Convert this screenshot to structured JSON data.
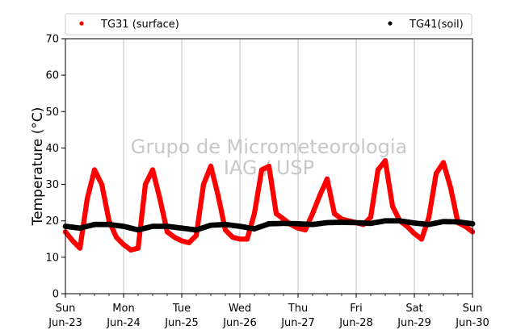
{
  "chart_data": {
    "type": "scatter",
    "title": "",
    "xlabel": "",
    "ylabel": "Temperature (°C)",
    "ylim": [
      0,
      70
    ],
    "yticks": [
      0,
      10,
      20,
      30,
      40,
      50,
      60,
      70
    ],
    "xlim": [
      "2024-06-23 00:00",
      "2024-06-30 00:00"
    ],
    "xtick_labels": [
      [
        "Sun",
        "Jun-23"
      ],
      [
        "Mon",
        "Jun-24"
      ],
      [
        "Tue",
        "Jun-25"
      ],
      [
        "Wed",
        "Jun-26"
      ],
      [
        "Thu",
        "Jun-27"
      ],
      [
        "Fri",
        "Jun-28"
      ],
      [
        "Sat",
        "Jun-29"
      ],
      [
        "Sun",
        "Jun-30"
      ]
    ],
    "grid": "vertical-at-day-ticks",
    "legend_placement": "top, above plot",
    "watermark": [
      "Grupo de Micrometeorologia",
      "IAG / USP"
    ],
    "series": [
      {
        "name": "TG31 (surface)",
        "color": "#ff0000",
        "x": [
          "2024-06-23 00:00",
          "2024-06-23 03:00",
          "2024-06-23 06:00",
          "2024-06-23 09:00",
          "2024-06-23 12:00",
          "2024-06-23 15:00",
          "2024-06-23 18:00",
          "2024-06-23 21:00",
          "2024-06-24 00:00",
          "2024-06-24 03:00",
          "2024-06-24 06:00",
          "2024-06-24 09:00",
          "2024-06-24 12:00",
          "2024-06-24 15:00",
          "2024-06-24 18:00",
          "2024-06-24 21:00",
          "2024-06-25 00:00",
          "2024-06-25 03:00",
          "2024-06-25 06:00",
          "2024-06-25 09:00",
          "2024-06-25 12:00",
          "2024-06-25 15:00",
          "2024-06-25 18:00",
          "2024-06-25 21:00",
          "2024-06-26 00:00",
          "2024-06-26 03:00",
          "2024-06-26 06:00",
          "2024-06-26 09:00",
          "2024-06-26 12:00",
          "2024-06-26 15:00",
          "2024-06-26 18:00",
          "2024-06-26 21:00",
          "2024-06-27 00:00",
          "2024-06-27 03:00",
          "2024-06-27 06:00",
          "2024-06-27 09:00",
          "2024-06-27 12:00",
          "2024-06-27 15:00",
          "2024-06-27 18:00",
          "2024-06-27 21:00",
          "2024-06-28 00:00",
          "2024-06-28 03:00",
          "2024-06-28 06:00",
          "2024-06-28 09:00",
          "2024-06-28 12:00",
          "2024-06-28 15:00",
          "2024-06-28 18:00",
          "2024-06-28 21:00",
          "2024-06-29 00:00",
          "2024-06-29 03:00",
          "2024-06-29 06:00",
          "2024-06-29 09:00",
          "2024-06-29 12:00",
          "2024-06-29 15:00",
          "2024-06-29 18:00",
          "2024-06-29 21:00",
          "2024-06-30 00:00"
        ],
        "y": [
          17.0,
          14.5,
          12.5,
          26.0,
          34.0,
          30.0,
          20.0,
          15.5,
          13.5,
          12.0,
          12.5,
          30.0,
          34.0,
          26.0,
          17.0,
          15.5,
          14.5,
          14.0,
          16.0,
          30.0,
          35.0,
          27.0,
          17.5,
          15.5,
          15.0,
          15.0,
          22.0,
          34.0,
          35.0,
          22.0,
          20.5,
          19.0,
          18.0,
          17.5,
          22.0,
          27.0,
          31.5,
          22.0,
          20.5,
          20.0,
          19.5,
          19.0,
          21.0,
          34.0,
          36.5,
          24.0,
          20.0,
          18.5,
          16.5,
          15.0,
          21.0,
          33.0,
          36.0,
          29.0,
          19.5,
          18.5,
          17.0
        ]
      },
      {
        "name": "TG41(soil)",
        "color": "#000000",
        "x": [
          "2024-06-23 00:00",
          "2024-06-23 06:00",
          "2024-06-23 12:00",
          "2024-06-23 18:00",
          "2024-06-24 00:00",
          "2024-06-24 06:00",
          "2024-06-24 12:00",
          "2024-06-24 18:00",
          "2024-06-25 00:00",
          "2024-06-25 06:00",
          "2024-06-25 12:00",
          "2024-06-25 18:00",
          "2024-06-26 00:00",
          "2024-06-26 06:00",
          "2024-06-26 12:00",
          "2024-06-26 18:00",
          "2024-06-27 00:00",
          "2024-06-27 06:00",
          "2024-06-27 12:00",
          "2024-06-27 18:00",
          "2024-06-28 00:00",
          "2024-06-28 06:00",
          "2024-06-28 12:00",
          "2024-06-28 18:00",
          "2024-06-29 00:00",
          "2024-06-29 06:00",
          "2024-06-29 12:00",
          "2024-06-29 18:00",
          "2024-06-30 00:00"
        ],
        "y": [
          18.5,
          18.0,
          19.0,
          19.0,
          18.5,
          17.5,
          18.5,
          18.5,
          18.0,
          17.5,
          18.8,
          19.0,
          18.5,
          17.8,
          19.2,
          19.3,
          19.2,
          19.0,
          19.5,
          19.6,
          19.5,
          19.3,
          20.0,
          20.0,
          19.4,
          19.0,
          19.8,
          19.7,
          19.2
        ]
      }
    ]
  }
}
